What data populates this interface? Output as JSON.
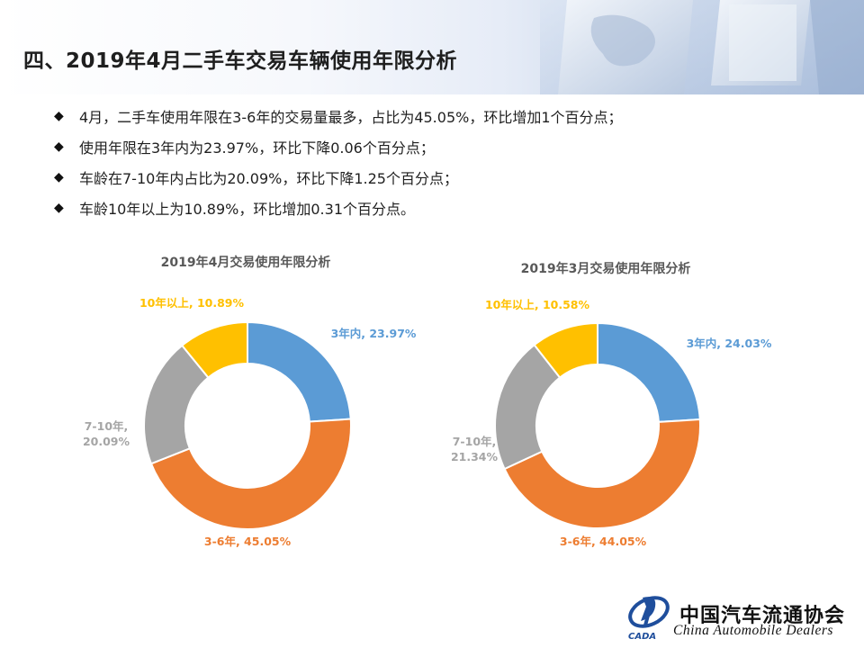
{
  "page": {
    "title": "四、2019年4月二手车交易车辆使用年限分析"
  },
  "bullets": [
    "4月，二手车使用年限在3-6年的交易量最多，占比为45.05%，环比增加1个百分点；",
    "使用年限在3年内为23.97%，环比下降0.06个百分点；",
    "车龄在7-10年内占比为20.09%，环比下降1.25个百分点；",
    "车龄10年以上为10.89%，环比增加0.31个百分点。"
  ],
  "bullet_symbol": "◆",
  "chart_data": [
    {
      "type": "pie",
      "title": "2019年4月交易使用年限分析",
      "categories": [
        "3年内",
        "3-6年",
        "7-10年",
        "10年以上"
      ],
      "values": [
        23.97,
        45.05,
        20.09,
        10.89
      ],
      "colors": [
        "#5b9bd5",
        "#ed7d31",
        "#a5a5a5",
        "#ffc000"
      ],
      "labels": [
        "3年内, 23.97%",
        "3-6年, 45.05%",
        "7-10年,|20.09%",
        "10年以上, 10.89%"
      ],
      "donut": true,
      "legend": "none"
    },
    {
      "type": "pie",
      "title": "2019年3月交易使用年限分析",
      "categories": [
        "3年内",
        "3-6年",
        "7-10年",
        "10年以上"
      ],
      "values": [
        24.03,
        44.05,
        21.34,
        10.58
      ],
      "colors": [
        "#5b9bd5",
        "#ed7d31",
        "#a5a5a5",
        "#ffc000"
      ],
      "labels": [
        "3年内, 24.03%",
        "3-6年, 44.05%",
        "7-10年,|21.34%",
        "10年以上, 10.58%"
      ],
      "donut": true,
      "legend": "none"
    }
  ],
  "footer": {
    "org_cn": "中国汽车流通协会",
    "org_en": "China  Automobile Dealers",
    "logo_text": "CADA"
  }
}
